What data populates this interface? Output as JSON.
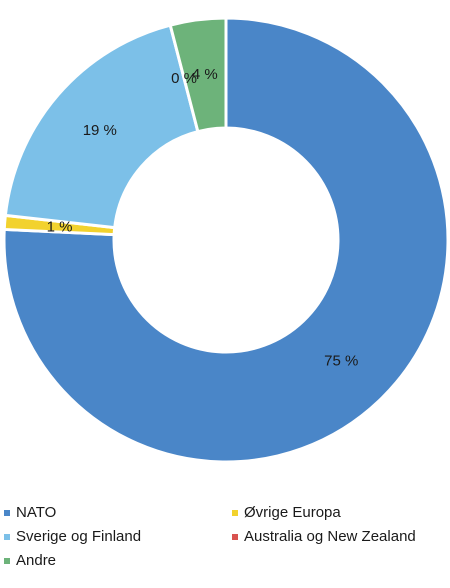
{
  "chart_data": {
    "type": "pie",
    "donut": true,
    "categories": [
      "NATO",
      "Øvrige Europa",
      "Sverige og Finland",
      "Australia og New Zealand",
      "Andre"
    ],
    "values": [
      75,
      1,
      19,
      0,
      4
    ],
    "data_labels": [
      "75 %",
      "1 %",
      "19 %",
      "0 %",
      "4 %"
    ],
    "colors": [
      "#4a86c8",
      "#f2d22e",
      "#7cc0e8",
      "#d9534f",
      "#6db37a"
    ],
    "start_angle_deg": 0,
    "direction": "clockwise",
    "legend_position": "bottom",
    "title": ""
  },
  "legend": {
    "items": [
      {
        "label": "NATO",
        "color": "#4a86c8"
      },
      {
        "label": "Øvrige Europa",
        "color": "#f2d22e"
      },
      {
        "label": "Sverige og Finland",
        "color": "#7cc0e8"
      },
      {
        "label": "Australia og New Zealand",
        "color": "#d9534f"
      },
      {
        "label": "Andre",
        "color": "#6db37a"
      }
    ]
  }
}
